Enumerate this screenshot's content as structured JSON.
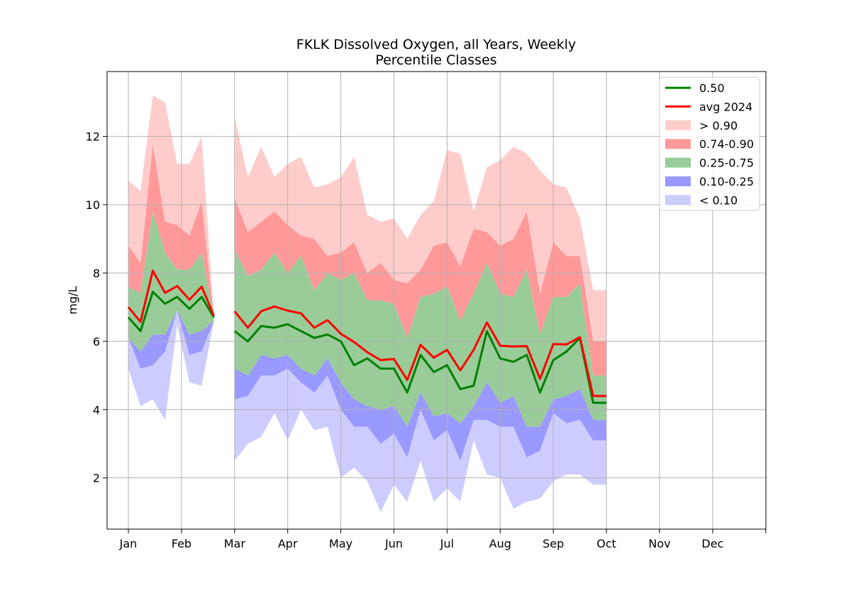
{
  "colors": {
    "median": "#008000",
    "avg": "#ff0000",
    "band_gt90": "#ffcccc",
    "band_74_90": "#ff9999",
    "band_25_75": "#99cc99",
    "band_10_25": "#9999ff",
    "band_lt10": "#ccccff"
  },
  "chart_data": {
    "type": "area",
    "title": "FKLK Dissolved Oxygen, all Years, Weekly",
    "subtitle": "Percentile Classes",
    "xlabel": "",
    "ylabel": "mg/L",
    "xlim": [
      0,
      12
    ],
    "ylim": [
      0.5,
      13.9
    ],
    "grid": true,
    "legend_position": "top-right",
    "month_ticks": [
      "Jan",
      "Feb",
      "Mar",
      "Apr",
      "May",
      "Jun",
      "Jul",
      "Aug",
      "Sep",
      "Oct",
      "Nov",
      "Dec"
    ],
    "y_ticks": [
      2,
      4,
      6,
      8,
      10,
      12
    ],
    "legend": [
      "0.50",
      "avg 2024",
      "> 0.90",
      "0.74-0.90",
      "0.25-0.75",
      "0.10-0.25",
      "< 0.10"
    ],
    "segments": [
      {
        "x": [
          0.0,
          0.23,
          0.46,
          0.69,
          0.92,
          1.15,
          1.38,
          1.61
        ],
        "p_min": [
          5.2,
          4.1,
          4.3,
          3.7,
          6.5,
          4.8,
          4.7,
          6.6
        ],
        "p10": [
          6.1,
          5.2,
          5.3,
          5.7,
          6.9,
          5.6,
          5.7,
          6.6
        ],
        "p25": [
          6.1,
          5.7,
          6.2,
          6.2,
          6.9,
          6.2,
          6.3,
          6.6
        ],
        "p50": [
          6.7,
          6.3,
          7.45,
          7.1,
          7.3,
          6.95,
          7.3,
          6.7
        ],
        "p75": [
          7.6,
          7.4,
          9.8,
          8.6,
          8.1,
          8.1,
          8.6,
          6.7
        ],
        "p90": [
          8.8,
          8.3,
          11.8,
          9.5,
          9.4,
          9.1,
          10.1,
          6.7
        ],
        "p_max": [
          10.7,
          10.4,
          13.2,
          13.0,
          11.2,
          11.2,
          12.0,
          6.7
        ],
        "avg": [
          7.0,
          6.57,
          8.07,
          7.42,
          7.62,
          7.22,
          7.6,
          6.75
        ]
      },
      {
        "x": [
          2.0,
          2.25,
          2.5,
          2.75,
          3.0,
          3.25,
          3.5,
          3.75,
          4.0,
          4.25,
          4.5,
          4.75,
          5.0,
          5.25,
          5.5,
          5.75,
          6.0,
          6.25,
          6.5,
          6.75,
          7.0,
          7.25,
          7.5,
          7.75,
          8.0,
          8.25,
          8.5,
          8.75,
          9.0
        ],
        "p_min": [
          2.5,
          3.0,
          3.2,
          3.9,
          3.1,
          4.0,
          3.4,
          3.5,
          2.0,
          2.3,
          1.9,
          1.0,
          1.8,
          1.3,
          2.5,
          1.3,
          1.7,
          1.3,
          3.1,
          2.1,
          2.0,
          1.1,
          1.3,
          1.4,
          1.9,
          2.1,
          2.1,
          1.8,
          1.8
        ],
        "p10": [
          4.3,
          4.4,
          5.0,
          5.0,
          5.2,
          4.8,
          4.5,
          5.0,
          4.0,
          3.5,
          3.5,
          3.0,
          3.3,
          2.6,
          4.0,
          3.1,
          3.4,
          2.5,
          3.7,
          3.7,
          3.5,
          3.5,
          2.6,
          2.8,
          3.9,
          3.6,
          3.7,
          3.1,
          3.1
        ],
        "p25": [
          5.2,
          5.0,
          5.6,
          5.5,
          5.6,
          5.2,
          5.0,
          5.5,
          4.8,
          4.3,
          4.1,
          4.0,
          4.1,
          3.5,
          4.5,
          3.8,
          3.9,
          3.6,
          4.1,
          4.8,
          4.2,
          4.4,
          3.5,
          3.5,
          4.3,
          4.4,
          4.6,
          3.7,
          3.7
        ],
        "p50": [
          6.3,
          6.0,
          6.45,
          6.4,
          6.5,
          6.3,
          6.1,
          6.2,
          6.0,
          5.3,
          5.5,
          5.2,
          5.2,
          4.5,
          5.6,
          5.1,
          5.3,
          4.6,
          4.7,
          6.3,
          5.5,
          5.4,
          5.6,
          4.5,
          5.45,
          5.7,
          6.1,
          4.2,
          4.2
        ],
        "p75": [
          8.7,
          7.9,
          8.1,
          8.6,
          8.0,
          8.5,
          7.5,
          8.0,
          7.8,
          8.0,
          7.2,
          7.2,
          7.1,
          6.1,
          7.3,
          7.4,
          7.6,
          6.6,
          7.4,
          8.3,
          7.4,
          7.3,
          8.1,
          6.2,
          7.3,
          7.3,
          7.7,
          5.0,
          5.0
        ],
        "p90": [
          10.2,
          9.2,
          9.5,
          9.8,
          9.4,
          9.1,
          9.0,
          8.5,
          8.6,
          8.9,
          8.0,
          8.3,
          7.8,
          7.7,
          8.1,
          8.8,
          8.9,
          8.2,
          9.3,
          9.2,
          8.8,
          9.0,
          9.8,
          7.4,
          8.9,
          8.5,
          8.5,
          6.0,
          6.0
        ],
        "p_max": [
          12.6,
          10.8,
          11.7,
          10.8,
          11.2,
          11.4,
          10.5,
          10.6,
          10.8,
          11.4,
          9.7,
          9.5,
          9.6,
          9.0,
          9.7,
          10.1,
          11.6,
          11.5,
          9.8,
          11.1,
          11.3,
          11.7,
          11.5,
          11.0,
          10.6,
          10.5,
          9.6,
          7.5,
          7.5
        ],
        "avg": [
          6.88,
          6.4,
          6.88,
          7.02,
          6.9,
          6.82,
          6.4,
          6.62,
          6.22,
          5.98,
          5.68,
          5.45,
          5.48,
          4.87,
          5.9,
          5.52,
          5.75,
          5.15,
          5.75,
          6.55,
          5.87,
          5.85,
          5.86,
          4.9,
          5.92,
          5.91,
          6.12,
          4.4,
          4.4
        ]
      }
    ]
  }
}
